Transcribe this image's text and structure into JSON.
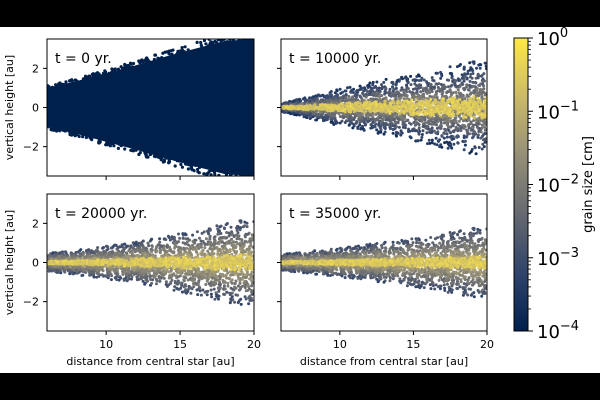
{
  "chart_data": [
    {
      "type": "scatter",
      "panel_label": "t = 0 yr.",
      "xlabel": "",
      "ylabel": "vertical height [au]",
      "xlim": [
        6,
        20
      ],
      "ylim": [
        -3.5,
        3.5
      ],
      "xticks": [
        10,
        15,
        20
      ],
      "yticks": [
        -2,
        0,
        2
      ],
      "series": [
        {
          "grain_size_cm": 0.0001,
          "envelope_x": [
            6,
            8,
            10,
            12,
            14,
            16,
            18,
            20
          ],
          "envelope_upper_y": [
            1.0,
            1.35,
            1.75,
            2.15,
            2.6,
            3.0,
            3.4,
            3.5
          ],
          "envelope_lower_y": [
            -1.0,
            -1.35,
            -1.75,
            -2.15,
            -2.6,
            -3.0,
            -3.4,
            -3.5
          ]
        }
      ]
    },
    {
      "type": "scatter",
      "panel_label": "t = 10000 yr.",
      "xlabel": "",
      "ylabel": "",
      "xlim": [
        6,
        20
      ],
      "ylim": [
        -3.5,
        3.5
      ],
      "xticks": [
        10,
        15,
        20
      ],
      "yticks": [
        -2,
        0,
        2
      ],
      "series": [
        {
          "grain_size_cm": 0.0003,
          "envelope_x": [
            6,
            8,
            10,
            12,
            14,
            16,
            18,
            20
          ],
          "envelope_upper_y": [
            0.2,
            0.55,
            0.9,
            1.2,
            1.5,
            1.8,
            2.1,
            2.4
          ],
          "envelope_lower_y": [
            -0.2,
            -0.55,
            -0.9,
            -1.2,
            -1.5,
            -1.8,
            -2.1,
            -2.4
          ]
        },
        {
          "grain_size_cm": 0.3,
          "envelope_x": [
            6,
            8,
            10,
            12,
            14,
            16,
            18,
            20
          ],
          "envelope_upper_y": [
            0.05,
            0.12,
            0.2,
            0.28,
            0.35,
            0.42,
            0.5,
            0.55
          ],
          "envelope_lower_y": [
            -0.05,
            -0.12,
            -0.2,
            -0.28,
            -0.35,
            -0.42,
            -0.5,
            -0.55
          ]
        }
      ]
    },
    {
      "type": "scatter",
      "panel_label": "t = 20000 yr.",
      "xlabel": "distance from central star [au]",
      "ylabel": "vertical height [au]",
      "xlim": [
        6,
        20
      ],
      "ylim": [
        -3.5,
        3.5
      ],
      "xticks": [
        10,
        15,
        20
      ],
      "yticks": [
        -2,
        0,
        2
      ],
      "series": [
        {
          "grain_size_cm": 0.001,
          "envelope_x": [
            6,
            8,
            10,
            12,
            14,
            16,
            18,
            20
          ],
          "envelope_upper_y": [
            0.45,
            0.6,
            0.8,
            1.0,
            1.3,
            1.6,
            1.9,
            2.2
          ],
          "envelope_lower_y": [
            -0.45,
            -0.6,
            -0.8,
            -1.0,
            -1.3,
            -1.6,
            -1.9,
            -2.2
          ]
        },
        {
          "grain_size_cm": 0.3,
          "envelope_x": [
            6,
            8,
            10,
            12,
            14,
            16,
            18,
            20
          ],
          "envelope_upper_y": [
            0.06,
            0.1,
            0.15,
            0.2,
            0.25,
            0.3,
            0.35,
            0.4
          ],
          "envelope_lower_y": [
            -0.06,
            -0.1,
            -0.15,
            -0.2,
            -0.25,
            -0.3,
            -0.35,
            -0.4
          ]
        }
      ]
    },
    {
      "type": "scatter",
      "panel_label": "t = 35000 yr.",
      "xlabel": "distance from central star [au]",
      "ylabel": "",
      "xlim": [
        6,
        20
      ],
      "ylim": [
        -3.5,
        3.5
      ],
      "xticks": [
        10,
        15,
        20
      ],
      "yticks": [
        -2,
        0,
        2
      ],
      "series": [
        {
          "grain_size_cm": 0.001,
          "envelope_x": [
            6,
            8,
            10,
            12,
            14,
            16,
            18,
            20
          ],
          "envelope_upper_y": [
            0.4,
            0.55,
            0.7,
            0.9,
            1.1,
            1.3,
            1.55,
            1.8
          ],
          "envelope_lower_y": [
            -0.4,
            -0.55,
            -0.7,
            -0.9,
            -1.1,
            -1.3,
            -1.55,
            -1.8
          ]
        },
        {
          "grain_size_cm": 0.3,
          "envelope_x": [
            6,
            8,
            10,
            12,
            14,
            16,
            18,
            20
          ],
          "envelope_upper_y": [
            0.05,
            0.08,
            0.12,
            0.16,
            0.2,
            0.24,
            0.28,
            0.3
          ],
          "envelope_lower_y": [
            -0.05,
            -0.08,
            -0.12,
            -0.16,
            -0.2,
            -0.24,
            -0.28,
            -0.3
          ]
        }
      ]
    }
  ],
  "colorbar": {
    "label": "grain size [cm]",
    "scale": "log",
    "range": [
      0.0001,
      1
    ],
    "ticks": [
      {
        "value": 1,
        "base": "10",
        "exp": "0"
      },
      {
        "value": 0.1,
        "base": "10",
        "exp": "−1"
      },
      {
        "value": 0.01,
        "base": "10",
        "exp": "−2"
      },
      {
        "value": 0.001,
        "base": "10",
        "exp": "−3"
      },
      {
        "value": 0.0001,
        "base": "10",
        "exp": "−4"
      }
    ],
    "minor_ticks": true,
    "colormap": [
      "#00204c",
      "#31446b",
      "#666970",
      "#958f78",
      "#cbba69",
      "#ffe945"
    ]
  }
}
